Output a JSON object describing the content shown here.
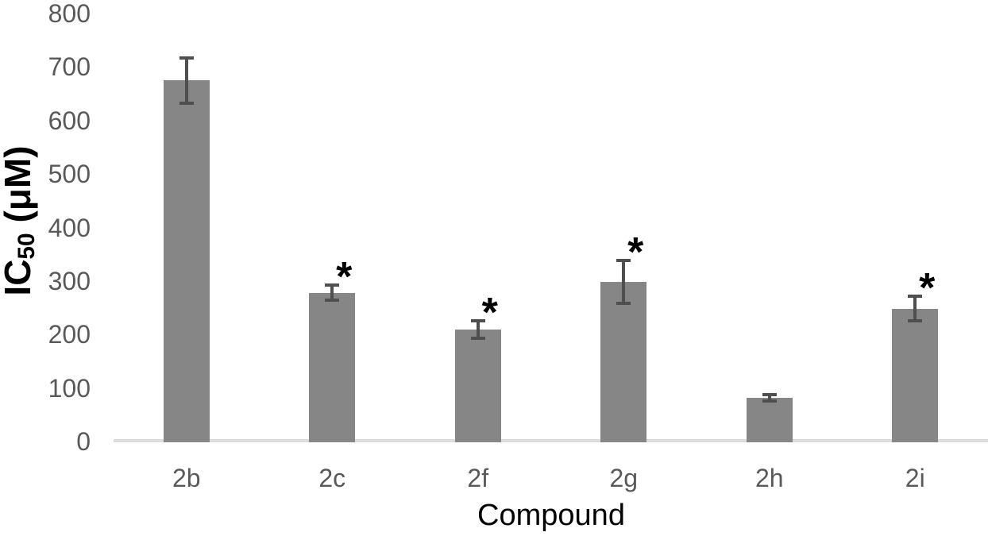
{
  "chart_data": {
    "type": "bar",
    "title": "",
    "xlabel": "Compound",
    "ylabel": "IC50 (μM)",
    "ylabel_parts": {
      "pre": "IC",
      "sub": "50",
      "post": " (μM)"
    },
    "categories": [
      "2b",
      "2c",
      "2f",
      "2g",
      "2h",
      "2i"
    ],
    "values": [
      675,
      278,
      209,
      298,
      81,
      248
    ],
    "error_bars": [
      42,
      14,
      16,
      40,
      6,
      23
    ],
    "significant": [
      false,
      true,
      true,
      true,
      false,
      true
    ],
    "significance_marker": "*",
    "ylim": [
      0,
      800
    ],
    "yticks": [
      0,
      100,
      200,
      300,
      400,
      500,
      600,
      700,
      800
    ],
    "grid": false,
    "legend": null,
    "colors": {
      "bar_fill": "#868686",
      "error_bar": "#4f4f4f",
      "axis_line": "#dcdcdc",
      "tick_label": "#595959",
      "axis_title": "#000000",
      "significance": "#000000",
      "background": "#ffffff"
    }
  }
}
